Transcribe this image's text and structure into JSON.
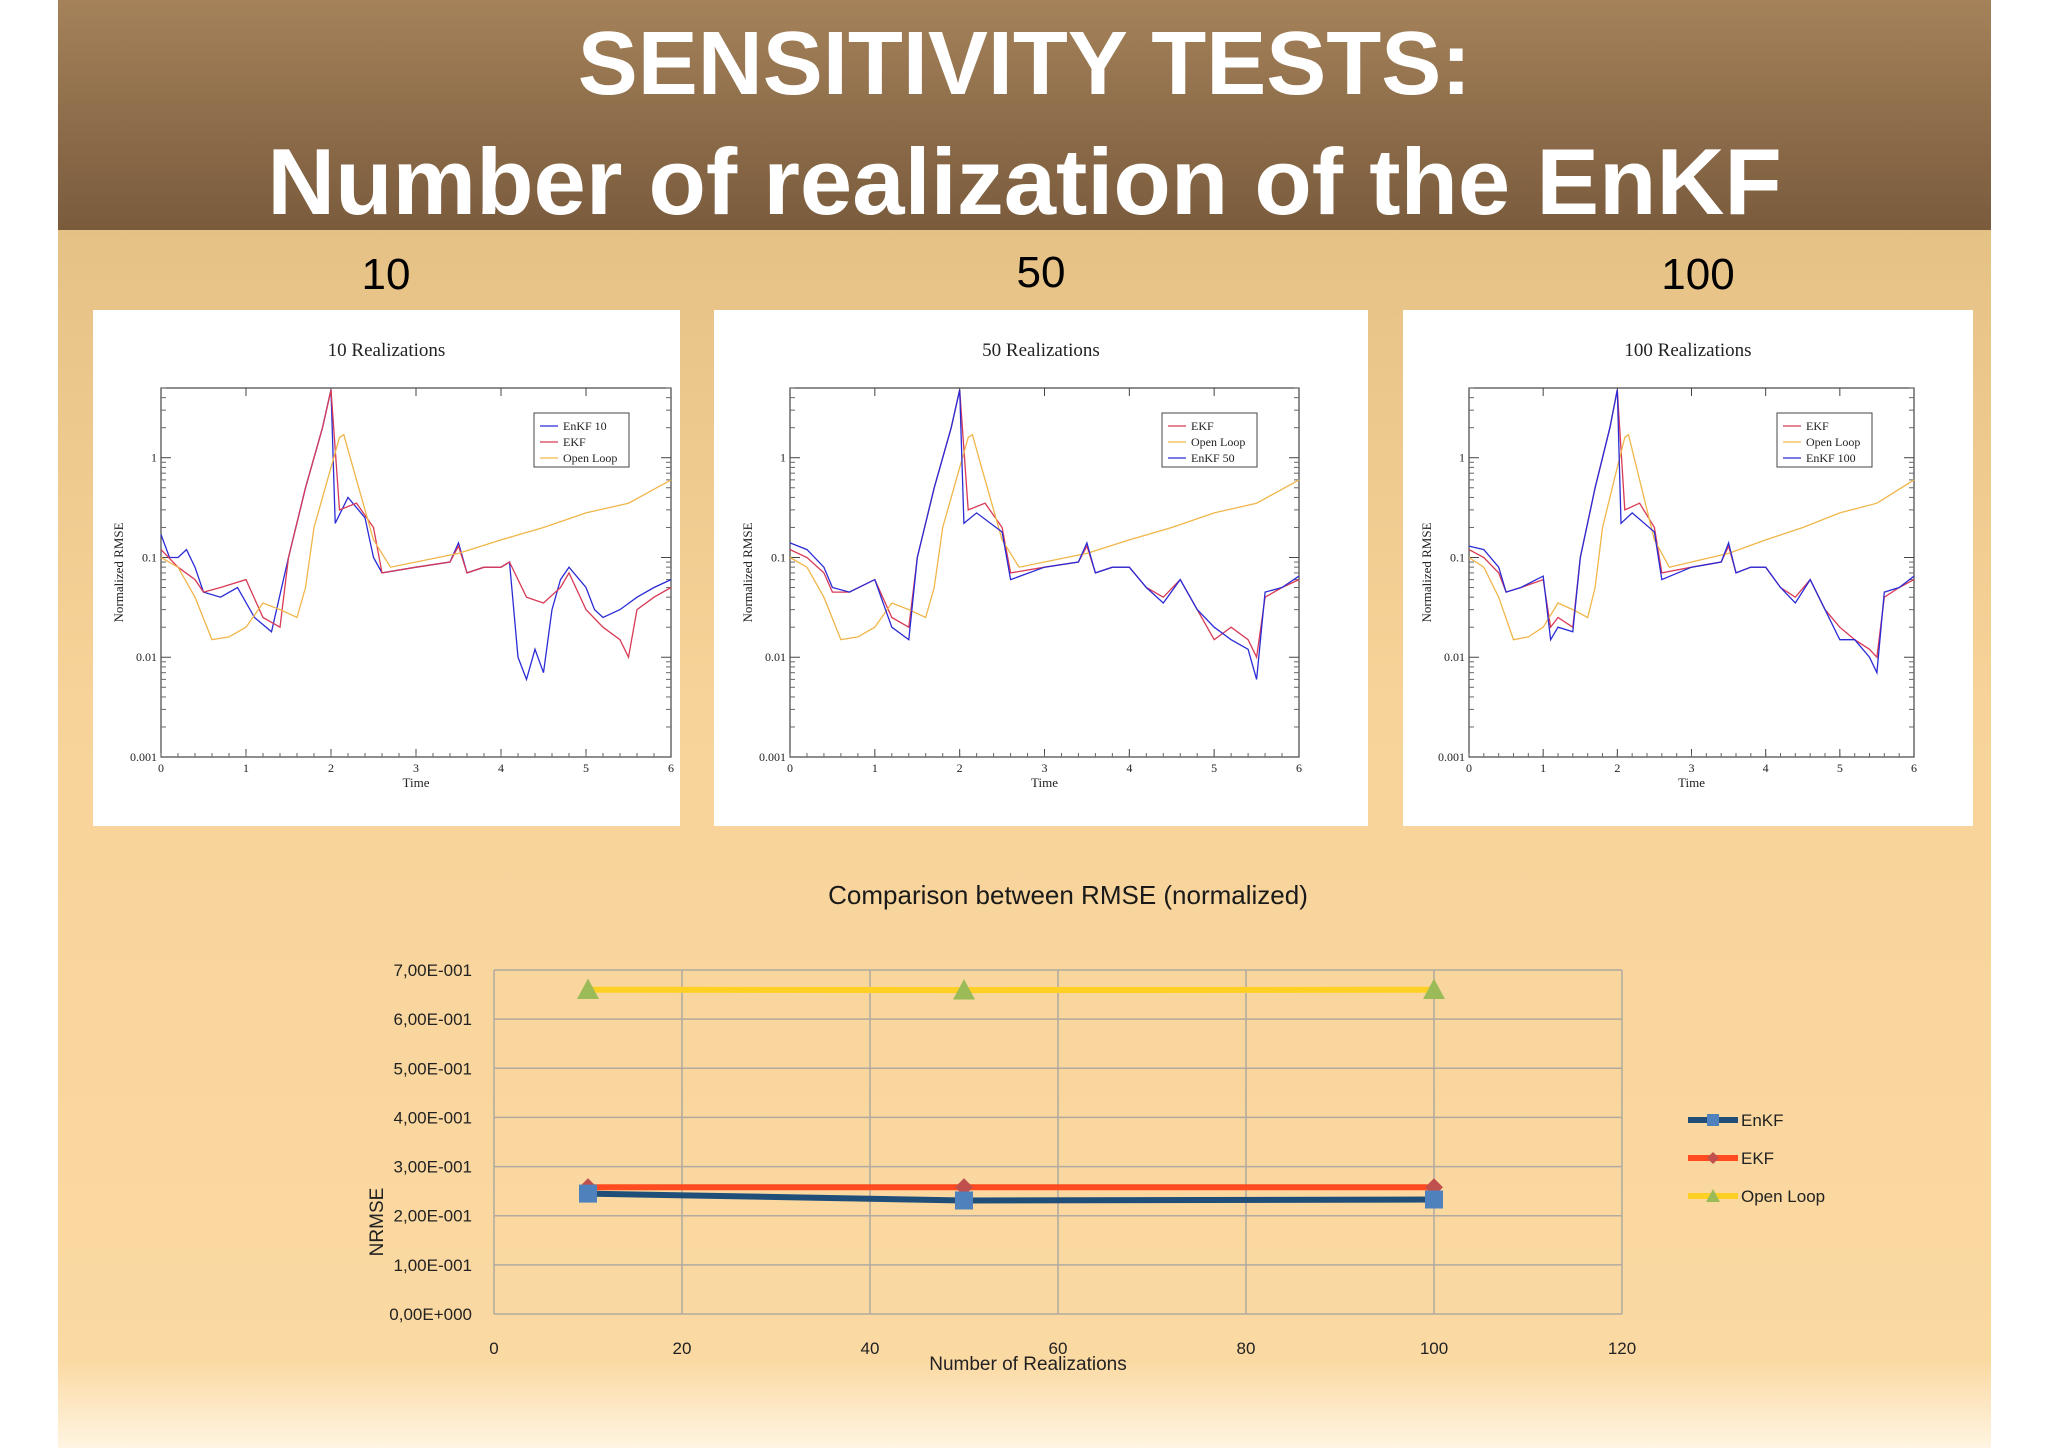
{
  "header": {
    "title_line1": "SENSITIVITY TESTS:",
    "title_line2": "Number of realization of the EnKF"
  },
  "panels": [
    {
      "number": "10",
      "chart_title": "10 Realizations",
      "legend": [
        "EnKF 10",
        "EKF",
        "Open Loop"
      ],
      "ylabel": "Normalized RMSE",
      "xlabel": "Time"
    },
    {
      "number": "50",
      "chart_title": "50 Realizations",
      "legend": [
        "EKF",
        "Open Loop",
        "EnKF 50"
      ],
      "ylabel": "Normalized RMSE",
      "xlabel": "Time"
    },
    {
      "number": "100",
      "chart_title": "100 Realizations",
      "legend": [
        "EKF",
        "Open Loop",
        "EnKF 100"
      ],
      "ylabel": "Normalized RMSE",
      "xlabel": "Time"
    }
  ],
  "colors": {
    "enkf_small": "#2b2bd6",
    "ekf_small": "#d83a55",
    "open_small": "#f0b64a",
    "enkf": "#1f4e79",
    "enkf_marker": "#4f81bd",
    "ekf": "#ff4b1f",
    "ekf_marker": "#c0504d",
    "open": "#ffd024",
    "open_marker": "#9bbb59"
  },
  "chart_data": [
    {
      "type": "line",
      "title": "10 Realizations",
      "xlabel": "Time",
      "ylabel": "Normalized RMSE",
      "yscale": "log",
      "xlim": [
        0,
        6
      ],
      "ylim": [
        0.001,
        5
      ],
      "x_ticks": [
        "0",
        "1",
        "2",
        "3",
        "4",
        "5",
        "6"
      ],
      "y_ticks": [
        "0.001",
        "0.01",
        "0.1",
        "1"
      ],
      "legend_position": "top-right",
      "series": [
        {
          "name": "EnKF 10",
          "x": [
            0,
            0.1,
            0.2,
            0.3,
            0.4,
            0.5,
            0.7,
            0.9,
            1.1,
            1.3,
            1.5,
            1.7,
            1.9,
            2.0,
            2.05,
            2.2,
            2.4,
            2.5,
            2.6,
            3.0,
            3.4,
            3.5,
            3.6,
            3.8,
            4.0,
            4.1,
            4.2,
            4.3,
            4.4,
            4.5,
            4.6,
            4.7,
            4.8,
            5.0,
            5.1,
            5.2,
            5.4,
            5.6,
            5.8,
            6.0
          ],
          "y": [
            0.17,
            0.1,
            0.1,
            0.12,
            0.08,
            0.045,
            0.04,
            0.05,
            0.025,
            0.018,
            0.1,
            0.5,
            2.0,
            4.8,
            0.22,
            0.4,
            0.25,
            0.1,
            0.07,
            0.08,
            0.09,
            0.14,
            0.07,
            0.08,
            0.08,
            0.09,
            0.01,
            0.006,
            0.012,
            0.007,
            0.03,
            0.06,
            0.08,
            0.05,
            0.03,
            0.025,
            0.03,
            0.04,
            0.05,
            0.06
          ]
        },
        {
          "name": "EKF",
          "x": [
            0,
            0.2,
            0.4,
            0.5,
            0.7,
            1.0,
            1.2,
            1.4,
            1.5,
            1.7,
            1.9,
            2.0,
            2.1,
            2.3,
            2.5,
            2.6,
            3.0,
            3.4,
            3.5,
            3.6,
            3.8,
            4.0,
            4.1,
            4.3,
            4.5,
            4.7,
            4.8,
            5.0,
            5.2,
            5.4,
            5.5,
            5.6,
            5.8,
            6.0
          ],
          "y": [
            0.12,
            0.08,
            0.06,
            0.045,
            0.05,
            0.06,
            0.025,
            0.02,
            0.1,
            0.5,
            2.0,
            4.8,
            0.3,
            0.35,
            0.2,
            0.07,
            0.08,
            0.09,
            0.13,
            0.07,
            0.08,
            0.08,
            0.09,
            0.04,
            0.035,
            0.05,
            0.07,
            0.03,
            0.02,
            0.015,
            0.01,
            0.03,
            0.04,
            0.05
          ]
        },
        {
          "name": "Open Loop",
          "x": [
            0,
            0.2,
            0.4,
            0.6,
            0.8,
            1.0,
            1.2,
            1.4,
            1.6,
            1.7,
            1.8,
            2.0,
            2.1,
            2.15,
            2.3,
            2.5,
            2.7,
            3.0,
            3.5,
            4.0,
            4.5,
            5.0,
            5.5,
            6.0
          ],
          "y": [
            0.1,
            0.08,
            0.04,
            0.015,
            0.016,
            0.02,
            0.035,
            0.03,
            0.025,
            0.05,
            0.2,
            0.8,
            1.6,
            1.7,
            0.6,
            0.15,
            0.08,
            0.09,
            0.11,
            0.15,
            0.2,
            0.28,
            0.35,
            0.6
          ]
        }
      ]
    },
    {
      "type": "line",
      "title": "50 Realizations",
      "xlabel": "Time",
      "ylabel": "Normalized RMSE",
      "yscale": "log",
      "xlim": [
        0,
        6
      ],
      "ylim": [
        0.001,
        5
      ],
      "x_ticks": [
        "0",
        "1",
        "2",
        "3",
        "4",
        "5",
        "6"
      ],
      "y_ticks": [
        "0.001",
        "0.01",
        "0.1",
        "1"
      ],
      "legend_position": "top-right",
      "series": [
        {
          "name": "EKF",
          "x": [
            0,
            0.2,
            0.4,
            0.5,
            0.7,
            1.0,
            1.2,
            1.4,
            1.5,
            1.7,
            1.9,
            2.0,
            2.1,
            2.3,
            2.5,
            2.6,
            3.0,
            3.4,
            3.5,
            3.6,
            3.8,
            4.0,
            4.2,
            4.4,
            4.6,
            4.8,
            5.0,
            5.2,
            5.4,
            5.5,
            5.6,
            5.8,
            6.0
          ],
          "y": [
            0.12,
            0.1,
            0.07,
            0.045,
            0.045,
            0.06,
            0.025,
            0.02,
            0.1,
            0.5,
            2.0,
            4.8,
            0.3,
            0.35,
            0.2,
            0.07,
            0.08,
            0.09,
            0.13,
            0.07,
            0.08,
            0.08,
            0.05,
            0.04,
            0.06,
            0.03,
            0.015,
            0.02,
            0.015,
            0.01,
            0.04,
            0.05,
            0.06
          ]
        },
        {
          "name": "Open Loop",
          "x": [
            0,
            0.2,
            0.4,
            0.6,
            0.8,
            1.0,
            1.2,
            1.4,
            1.6,
            1.7,
            1.8,
            2.0,
            2.1,
            2.15,
            2.3,
            2.5,
            2.7,
            3.0,
            3.5,
            4.0,
            4.5,
            5.0,
            5.5,
            6.0
          ],
          "y": [
            0.1,
            0.08,
            0.04,
            0.015,
            0.016,
            0.02,
            0.035,
            0.03,
            0.025,
            0.05,
            0.2,
            0.8,
            1.6,
            1.7,
            0.6,
            0.15,
            0.08,
            0.09,
            0.11,
            0.15,
            0.2,
            0.28,
            0.35,
            0.6
          ]
        },
        {
          "name": "EnKF 50",
          "x": [
            0,
            0.2,
            0.4,
            0.5,
            0.7,
            1.0,
            1.2,
            1.4,
            1.5,
            1.7,
            1.9,
            2.0,
            2.05,
            2.2,
            2.5,
            2.6,
            3.0,
            3.4,
            3.5,
            3.6,
            3.8,
            4.0,
            4.2,
            4.4,
            4.6,
            4.8,
            5.0,
            5.2,
            5.4,
            5.5,
            5.6,
            5.8,
            6.0
          ],
          "y": [
            0.14,
            0.12,
            0.08,
            0.05,
            0.045,
            0.06,
            0.02,
            0.015,
            0.1,
            0.5,
            2.0,
            4.8,
            0.22,
            0.28,
            0.18,
            0.06,
            0.08,
            0.09,
            0.14,
            0.07,
            0.08,
            0.08,
            0.05,
            0.035,
            0.06,
            0.03,
            0.02,
            0.015,
            0.012,
            0.006,
            0.045,
            0.05,
            0.065
          ]
        }
      ]
    },
    {
      "type": "line",
      "title": "100 Realizations",
      "xlabel": "Time",
      "ylabel": "Normalized RMSE",
      "yscale": "log",
      "xlim": [
        0,
        6
      ],
      "ylim": [
        0.001,
        5
      ],
      "x_ticks": [
        "0",
        "1",
        "2",
        "3",
        "4",
        "5",
        "6"
      ],
      "y_ticks": [
        "0.001",
        "0.01",
        "0.1",
        "1"
      ],
      "legend_position": "top-right",
      "series": [
        {
          "name": "EKF",
          "x": [
            0,
            0.2,
            0.4,
            0.5,
            0.7,
            1.0,
            1.1,
            1.2,
            1.4,
            1.5,
            1.7,
            1.9,
            2.0,
            2.1,
            2.3,
            2.5,
            2.6,
            3.0,
            3.4,
            3.5,
            3.6,
            3.8,
            4.0,
            4.2,
            4.4,
            4.6,
            4.8,
            5.0,
            5.2,
            5.4,
            5.5,
            5.6,
            5.8,
            6.0
          ],
          "y": [
            0.12,
            0.1,
            0.07,
            0.045,
            0.05,
            0.06,
            0.02,
            0.025,
            0.02,
            0.1,
            0.5,
            2.0,
            4.8,
            0.3,
            0.35,
            0.2,
            0.07,
            0.08,
            0.09,
            0.13,
            0.07,
            0.08,
            0.08,
            0.05,
            0.04,
            0.06,
            0.03,
            0.02,
            0.015,
            0.012,
            0.01,
            0.04,
            0.05,
            0.06
          ]
        },
        {
          "name": "Open Loop",
          "x": [
            0,
            0.2,
            0.4,
            0.6,
            0.8,
            1.0,
            1.2,
            1.4,
            1.6,
            1.7,
            1.8,
            2.0,
            2.1,
            2.15,
            2.3,
            2.5,
            2.7,
            3.0,
            3.5,
            4.0,
            4.5,
            5.0,
            5.5,
            6.0
          ],
          "y": [
            0.1,
            0.08,
            0.04,
            0.015,
            0.016,
            0.02,
            0.035,
            0.03,
            0.025,
            0.05,
            0.2,
            0.8,
            1.6,
            1.7,
            0.6,
            0.15,
            0.08,
            0.09,
            0.11,
            0.15,
            0.2,
            0.28,
            0.35,
            0.6
          ]
        },
        {
          "name": "EnKF 100",
          "x": [
            0,
            0.2,
            0.4,
            0.5,
            0.7,
            1.0,
            1.1,
            1.2,
            1.4,
            1.5,
            1.7,
            1.9,
            2.0,
            2.05,
            2.2,
            2.5,
            2.6,
            3.0,
            3.4,
            3.5,
            3.6,
            3.8,
            4.0,
            4.2,
            4.4,
            4.6,
            4.8,
            5.0,
            5.2,
            5.4,
            5.5,
            5.6,
            5.8,
            6.0
          ],
          "y": [
            0.13,
            0.12,
            0.08,
            0.045,
            0.05,
            0.065,
            0.015,
            0.02,
            0.018,
            0.1,
            0.5,
            2.0,
            4.8,
            0.22,
            0.28,
            0.18,
            0.06,
            0.08,
            0.09,
            0.14,
            0.07,
            0.08,
            0.08,
            0.05,
            0.035,
            0.06,
            0.03,
            0.015,
            0.015,
            0.01,
            0.007,
            0.045,
            0.05,
            0.065
          ]
        }
      ]
    },
    {
      "type": "line",
      "title": "Comparison between RMSE (normalized)",
      "xlabel": "Number of Realizations",
      "ylabel": "NRMSE",
      "xlim": [
        0,
        120
      ],
      "ylim": [
        0,
        0.7
      ],
      "x_ticks": [
        "0",
        "20",
        "40",
        "60",
        "80",
        "100",
        "120"
      ],
      "y_ticks": [
        "0,00E+000",
        "1,00E-001",
        "2,00E-001",
        "3,00E-001",
        "4,00E-001",
        "5,00E-001",
        "6,00E-001",
        "7,00E-001"
      ],
      "grid": true,
      "legend_position": "right",
      "x": [
        10,
        50,
        100
      ],
      "series": [
        {
          "name": "EnKF",
          "values": [
            0.245,
            0.231,
            0.233
          ]
        },
        {
          "name": "EKF",
          "values": [
            0.258,
            0.258,
            0.258
          ]
        },
        {
          "name": "Open Loop",
          "values": [
            0.66,
            0.659,
            0.66
          ]
        }
      ]
    }
  ]
}
